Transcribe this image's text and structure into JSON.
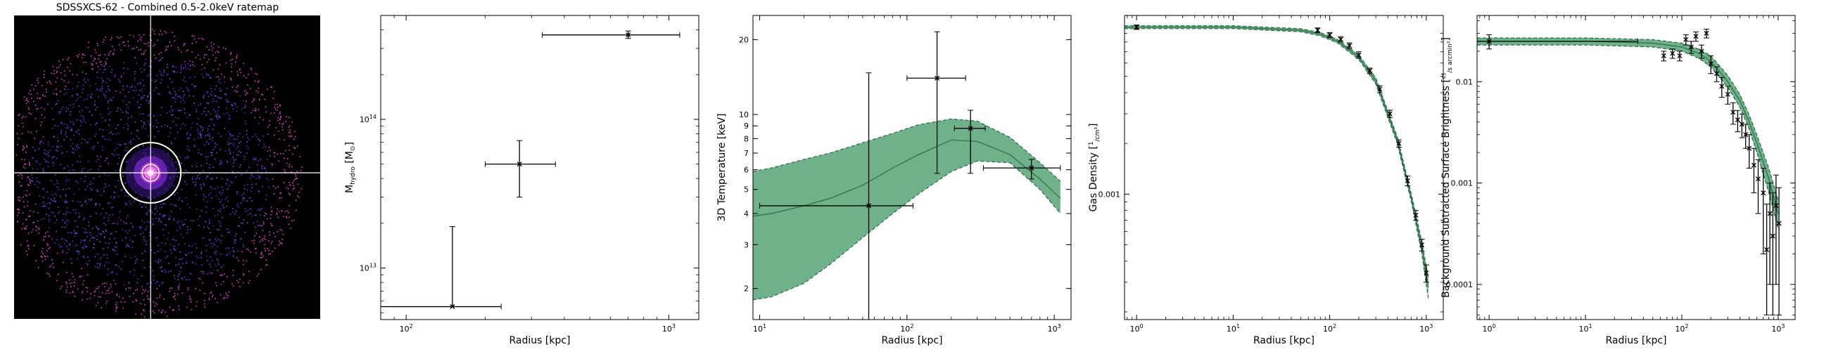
{
  "colors": {
    "band": "#4a9e6e",
    "band_edge": "#2e6b47",
    "points": "#000000",
    "image_bg": "#000000",
    "image_crosshair": "#ffffff",
    "image_photons": "#9b3cf0"
  },
  "chart_data": [
    {
      "type": "image",
      "title": "SDSSXCS-62 - Combined 0.5-2.0keV ratemap",
      "annotations": [
        "crosshair",
        "circle region",
        "point-source region"
      ]
    },
    {
      "type": "scatter",
      "title": "",
      "xlabel": "Radius [kpc]",
      "ylabel": "M",
      "ylabel_sub": "hydro",
      "ylabel_tail": " [M",
      "ylabel_sun": "⊙",
      "ylabel_end": "]",
      "xscale": "log",
      "yscale": "log",
      "xlim": [
        80,
        1300
      ],
      "ylim": [
        4500000000000,
        500000000000000
      ],
      "xticks": [
        {
          "v": 100,
          "m": "10",
          "e": "2"
        },
        {
          "v": 1000,
          "m": "10",
          "e": "3"
        }
      ],
      "yticks": [
        {
          "v": 10000000000000,
          "m": "10",
          "e": "13"
        },
        {
          "v": 100000000000000,
          "m": "10",
          "e": "14"
        }
      ],
      "points": [
        {
          "x": 150,
          "xerr": [
            70,
            80
          ],
          "y": 5500000000000,
          "yerr": [
            0,
            13500000000000
          ]
        },
        {
          "x": 270,
          "xerr": [
            70,
            100
          ],
          "y": 50000000000000,
          "yerr": [
            20000000000000,
            22000000000000
          ]
        },
        {
          "x": 700,
          "xerr": [
            370,
            400
          ],
          "y": 370000000000000,
          "yerr": [
            20000000000000,
            23000000000000
          ]
        }
      ]
    },
    {
      "type": "line",
      "title": "",
      "xlabel": "Radius [kpc]",
      "ylabel": "3D Temperature [keV]",
      "xscale": "log",
      "yscale": "log",
      "xlim": [
        9,
        1300
      ],
      "ylim": [
        1.5,
        25
      ],
      "xticks": [
        {
          "v": 10,
          "m": "10",
          "e": "1"
        },
        {
          "v": 100,
          "m": "10",
          "e": "2"
        },
        {
          "v": 1000,
          "m": "10",
          "e": "3"
        }
      ],
      "yticks": [
        {
          "v": 2,
          "t": "2"
        },
        {
          "v": 3,
          "t": "3"
        },
        {
          "v": 4,
          "t": "4"
        },
        {
          "v": 5,
          "t": "5"
        },
        {
          "v": 6,
          "t": "6"
        },
        {
          "v": 7,
          "t": "7"
        },
        {
          "v": 8,
          "t": "8"
        },
        {
          "v": 9,
          "t": "9"
        },
        {
          "v": 10,
          "t": "10"
        },
        {
          "v": 20,
          "t": "20"
        }
      ],
      "band": {
        "x": [
          9,
          12,
          20,
          30,
          50,
          80,
          120,
          200,
          300,
          500,
          800,
          1100
        ],
        "median": [
          3.9,
          4.0,
          4.3,
          4.6,
          5.2,
          6.1,
          6.9,
          7.9,
          7.8,
          6.9,
          5.5,
          4.6
        ],
        "lower": [
          1.8,
          1.85,
          2.1,
          2.5,
          3.2,
          4.0,
          4.8,
          5.9,
          6.5,
          6.4,
          5.0,
          4.0
        ],
        "upper": [
          5.9,
          6.1,
          6.6,
          7.0,
          7.7,
          8.4,
          9.1,
          9.6,
          9.4,
          8.1,
          6.4,
          5.4
        ]
      },
      "points": [
        {
          "x": 55,
          "xerr": [
            45,
            55
          ],
          "y": 4.3,
          "yerr": [
            2.8,
            10.4
          ]
        },
        {
          "x": 160,
          "xerr": [
            60,
            90
          ],
          "y": 14,
          "yerr": [
            8.2,
            7.5
          ]
        },
        {
          "x": 270,
          "xerr": [
            60,
            70
          ],
          "y": 8.8,
          "yerr": [
            3.0,
            1.6
          ]
        },
        {
          "x": 700,
          "xerr": [
            370,
            400
          ],
          "y": 6.1,
          "yerr": [
            0.6,
            0.5
          ]
        }
      ]
    },
    {
      "type": "line",
      "title": "",
      "xlabel": "Radius [kpc]",
      "ylabel": "Gas Density",
      "ylabel_unit_num": "1",
      "ylabel_unit_den": "cm³",
      "xscale": "log",
      "yscale": "log",
      "xlim": [
        0.75,
        1500
      ],
      "ylim": [
        0.00018,
        0.0115
      ],
      "xticks": [
        {
          "v": 1,
          "m": "10",
          "e": "0"
        },
        {
          "v": 10,
          "m": "10",
          "e": "1"
        },
        {
          "v": 100,
          "m": "10",
          "e": "2"
        },
        {
          "v": 1000,
          "m": "10",
          "e": "3"
        }
      ],
      "yticks": [
        {
          "v": 0.001,
          "t": "0.001"
        }
      ],
      "band": {
        "x": [
          0.75,
          1,
          10,
          50,
          80,
          120,
          200,
          300,
          500,
          700,
          900,
          1050
        ],
        "median": [
          0.0098,
          0.0098,
          0.0098,
          0.0094,
          0.0089,
          0.0081,
          0.0065,
          0.0047,
          0.0021,
          0.00095,
          0.00048,
          0.00028
        ],
        "lower": [
          0.0096,
          0.0096,
          0.0096,
          0.0092,
          0.0087,
          0.0079,
          0.0063,
          0.0045,
          0.002,
          0.0009,
          0.00044,
          0.00024
        ],
        "upper": [
          0.01,
          0.01,
          0.01,
          0.0096,
          0.0091,
          0.0083,
          0.0067,
          0.0049,
          0.0022,
          0.001,
          0.00052,
          0.00032
        ]
      },
      "points": [
        {
          "x": 1,
          "y": 0.0098,
          "yerr": [
            0.0003,
            0.0003
          ]
        },
        {
          "x": 75,
          "y": 0.0094,
          "yerr": [
            0.0003,
            0.0003
          ]
        },
        {
          "x": 100,
          "y": 0.0088,
          "yerr": [
            0.0003,
            0.0003
          ]
        },
        {
          "x": 130,
          "y": 0.0083,
          "yerr": [
            0.0003,
            0.0003
          ]
        },
        {
          "x": 160,
          "y": 0.0076,
          "yerr": [
            0.0003,
            0.0003
          ]
        },
        {
          "x": 200,
          "y": 0.0067,
          "yerr": [
            0.0003,
            0.0003
          ]
        },
        {
          "x": 260,
          "y": 0.0054,
          "yerr": [
            0.0002,
            0.0002
          ]
        },
        {
          "x": 330,
          "y": 0.0042,
          "yerr": [
            0.0002,
            0.0002
          ]
        },
        {
          "x": 420,
          "y": 0.003,
          "yerr": [
            0.00015,
            0.00015
          ]
        },
        {
          "x": 520,
          "y": 0.002,
          "yerr": [
            0.0001,
            0.0001
          ]
        },
        {
          "x": 640,
          "y": 0.0012,
          "yerr": [
            8e-05,
            8e-05
          ]
        },
        {
          "x": 780,
          "y": 0.00075,
          "yerr": [
            5e-05,
            5e-05
          ]
        },
        {
          "x": 900,
          "y": 0.0005,
          "yerr": [
            4e-05,
            4e-05
          ]
        },
        {
          "x": 1000,
          "y": 0.00034,
          "yerr": [
            4e-05,
            4e-05
          ]
        }
      ]
    },
    {
      "type": "line",
      "title": "",
      "xlabel": "Radius [kpc]",
      "ylabel": "Background Subtracted Surface Brightness",
      "ylabel_unit_num": "ct",
      "ylabel_unit_den": "s arcmin²",
      "xscale": "log",
      "yscale": "log",
      "xlim": [
        0.75,
        1500
      ],
      "ylim": [
        4.5e-05,
        0.045
      ],
      "xticks": [
        {
          "v": 1,
          "m": "10",
          "e": "0"
        },
        {
          "v": 10,
          "m": "10",
          "e": "1"
        },
        {
          "v": 100,
          "m": "10",
          "e": "2"
        },
        {
          "v": 1000,
          "m": "10",
          "e": "3"
        }
      ],
      "yticks": [
        {
          "v": 0.0001,
          "t": "0.0001"
        },
        {
          "v": 0.001,
          "t": "0.001"
        },
        {
          "v": 0.01,
          "t": "0.01"
        }
      ],
      "band": {
        "x": [
          0.75,
          1,
          10,
          50,
          100,
          150,
          200,
          300,
          400,
          500,
          600,
          800,
          1000
        ],
        "median": [
          0.025,
          0.025,
          0.025,
          0.024,
          0.022,
          0.019,
          0.016,
          0.01,
          0.0065,
          0.004,
          0.0025,
          0.0011,
          0.0005
        ],
        "lower": [
          0.023,
          0.023,
          0.023,
          0.022,
          0.02,
          0.017,
          0.014,
          0.0088,
          0.0056,
          0.0034,
          0.002,
          0.0008,
          0.00035
        ],
        "upper": [
          0.027,
          0.027,
          0.027,
          0.026,
          0.024,
          0.021,
          0.018,
          0.0115,
          0.0075,
          0.0047,
          0.003,
          0.0014,
          0.00068
        ]
      },
      "points": [
        {
          "x": 1,
          "xerr": [
            0.25,
            34
          ],
          "y": 0.025,
          "yerr": [
            0.004,
            0.004
          ]
        },
        {
          "x": 65,
          "y": 0.018,
          "yerr": [
            0.002,
            0.002
          ]
        },
        {
          "x": 80,
          "y": 0.019,
          "yerr": [
            0.002,
            0.002
          ]
        },
        {
          "x": 95,
          "y": 0.018,
          "yerr": [
            0.002,
            0.002
          ]
        },
        {
          "x": 110,
          "y": 0.026,
          "yerr": [
            0.003,
            0.003
          ]
        },
        {
          "x": 125,
          "y": 0.022,
          "yerr": [
            0.003,
            0.003
          ]
        },
        {
          "x": 140,
          "y": 0.028,
          "yerr": [
            0.003,
            0.003
          ]
        },
        {
          "x": 160,
          "y": 0.02,
          "yerr": [
            0.003,
            0.003
          ]
        },
        {
          "x": 180,
          "y": 0.03,
          "yerr": [
            0.003,
            0.003
          ]
        },
        {
          "x": 200,
          "y": 0.015,
          "yerr": [
            0.003,
            0.003
          ]
        },
        {
          "x": 230,
          "y": 0.012,
          "yerr": [
            0.002,
            0.002
          ]
        },
        {
          "x": 260,
          "y": 0.009,
          "yerr": [
            0.002,
            0.002
          ]
        },
        {
          "x": 300,
          "y": 0.0075,
          "yerr": [
            0.0015,
            0.0015
          ]
        },
        {
          "x": 340,
          "y": 0.005,
          "yerr": [
            0.0012,
            0.0012
          ]
        },
        {
          "x": 380,
          "y": 0.0042,
          "yerr": [
            0.001,
            0.001
          ]
        },
        {
          "x": 420,
          "y": 0.0038,
          "yerr": [
            0.001,
            0.001
          ]
        },
        {
          "x": 460,
          "y": 0.003,
          "yerr": [
            0.0008,
            0.0008
          ]
        },
        {
          "x": 500,
          "y": 0.0022,
          "yerr": [
            0.0008,
            0.0008
          ]
        },
        {
          "x": 560,
          "y": 0.0015,
          "yerr": [
            0.0007,
            0.0007
          ]
        },
        {
          "x": 620,
          "y": 0.0011,
          "yerr": [
            0.0006,
            0.0006
          ]
        },
        {
          "x": 700,
          "y": 0.0008,
          "yerr": [
            0.0006,
            0.0006
          ]
        },
        {
          "x": 760,
          "y": 0.00022,
          "yerr": [
            0.00017,
            0.0004
          ]
        },
        {
          "x": 820,
          "y": 0.0005,
          "yerr": [
            0.0004,
            0.0005
          ]
        },
        {
          "x": 880,
          "y": 0.0003,
          "yerr": [
            0.00025,
            0.0005
          ]
        },
        {
          "x": 950,
          "y": 0.0006,
          "yerr": [
            0.0005,
            0.0006
          ]
        },
        {
          "x": 1020,
          "y": 0.0004,
          "yerr": [
            0.00035,
            0.0005
          ]
        }
      ]
    }
  ]
}
